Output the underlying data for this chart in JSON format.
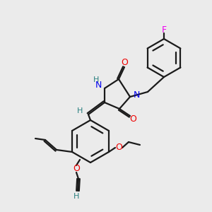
{
  "bg_color": "#ebebeb",
  "bond_color": "#1a1a1a",
  "atom_colors": {
    "N": "#0000ee",
    "O": "#ee0000",
    "F": "#ee00ee",
    "H": "#2a8080",
    "C": "#1a1a1a"
  },
  "lw": 1.6
}
